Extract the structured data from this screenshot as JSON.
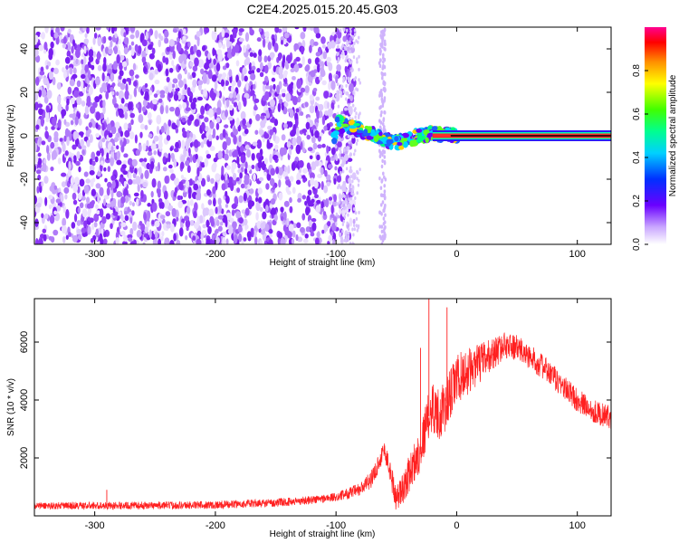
{
  "title": "C2E4.2025.015.20.45.G03",
  "colors": {
    "snr_line": "#ff2020",
    "ridge": "#000000",
    "background_noise": "#7a2ee8"
  },
  "chart_data": [
    {
      "type": "heatmap",
      "name": "spectrogram",
      "xlabel": "Height of straight line (km)",
      "ylabel": "Frequency (Hz)",
      "xlim": [
        -350,
        128
      ],
      "ylim": [
        -50,
        50
      ],
      "xticks": [
        -300,
        -200,
        -100,
        0,
        100
      ],
      "yticks": [
        -40,
        -20,
        0,
        20,
        40
      ],
      "noise_region_x": [
        -350,
        -100
      ],
      "signal_ridge": {
        "frequency_hz": 0,
        "points": [
          {
            "x": -100,
            "y": 6
          },
          {
            "x": -90,
            "y": 4
          },
          {
            "x": -80,
            "y": 3
          },
          {
            "x": -70,
            "y": 1
          },
          {
            "x": -60,
            "y": -2
          },
          {
            "x": -50,
            "y": -3
          },
          {
            "x": -40,
            "y": -2
          },
          {
            "x": -30,
            "y": 0
          },
          {
            "x": -20,
            "y": 1
          },
          {
            "x": -10,
            "y": 0.5
          },
          {
            "x": 0,
            "y": 0
          },
          {
            "x": 128,
            "y": 0
          }
        ]
      },
      "colorbar": {
        "label": "Normalized spectral amplitude",
        "range": [
          0,
          1
        ],
        "ticks": [
          0.0,
          0.2,
          0.4,
          0.6,
          0.8
        ]
      }
    },
    {
      "type": "line",
      "name": "snr",
      "xlabel": "Height of straight line (km)",
      "ylabel": "SNR (10 * v/v)",
      "xlim": [
        -350,
        128
      ],
      "ylim": [
        0,
        7500
      ],
      "xticks": [
        -300,
        -200,
        -100,
        0,
        100
      ],
      "yticks": [
        2000,
        4000,
        6000
      ],
      "envelope": {
        "x": [
          -350,
          -300,
          -250,
          -200,
          -150,
          -120,
          -100,
          -80,
          -70,
          -60,
          -55,
          -50,
          -45,
          -40,
          -30,
          -25,
          -20,
          -15,
          -10,
          -5,
          0,
          10,
          20,
          30,
          40,
          50,
          60,
          70,
          80,
          90,
          100,
          110,
          120,
          128
        ],
        "y": [
          350,
          350,
          360,
          380,
          450,
          550,
          650,
          900,
          1300,
          2300,
          1500,
          600,
          900,
          1400,
          2300,
          3200,
          3800,
          3500,
          3700,
          4200,
          4700,
          5000,
          5300,
          5600,
          5900,
          5800,
          5500,
          5200,
          4800,
          4400,
          4000,
          3700,
          3500,
          3400
        ]
      },
      "noise": {
        "x": [
          -350,
          -100,
          -60,
          -20,
          0,
          40,
          128
        ],
        "amplitude": [
          120,
          150,
          350,
          900,
          900,
          450,
          400
        ]
      },
      "spikes": [
        {
          "x": -23,
          "y": 7500
        },
        {
          "x": -8,
          "y": 7200
        },
        {
          "x": -290,
          "y": 900
        },
        {
          "x": -30,
          "y": 5800
        }
      ]
    }
  ]
}
